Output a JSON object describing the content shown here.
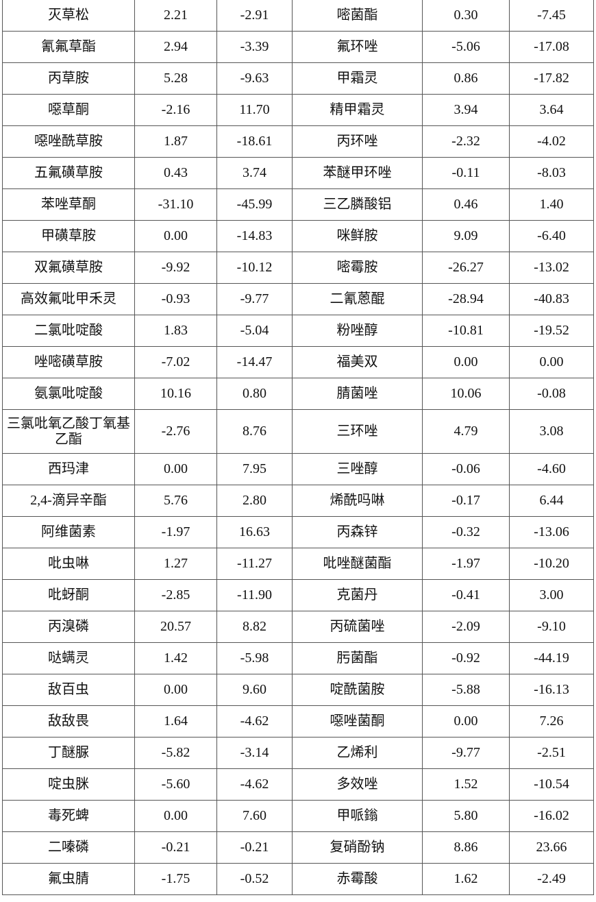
{
  "rows": [
    [
      "灭草松",
      "2.21",
      "-2.91",
      "嘧菌酯",
      "0.30",
      "-7.45"
    ],
    [
      "氰氟草酯",
      "2.94",
      "-3.39",
      "氟环唑",
      "-5.06",
      "-17.08"
    ],
    [
      "丙草胺",
      "5.28",
      "-9.63",
      "甲霜灵",
      "0.86",
      "-17.82"
    ],
    [
      "噁草酮",
      "-2.16",
      "11.70",
      "精甲霜灵",
      "3.94",
      "3.64"
    ],
    [
      "噁唑酰草胺",
      "1.87",
      "-18.61",
      "丙环唑",
      "-2.32",
      "-4.02"
    ],
    [
      "五氟磺草胺",
      "0.43",
      "3.74",
      "苯醚甲环唑",
      "-0.11",
      "-8.03"
    ],
    [
      "苯唑草酮",
      "-31.10",
      "-45.99",
      "三乙膦酸铝",
      "0.46",
      "1.40"
    ],
    [
      "甲磺草胺",
      "0.00",
      "-14.83",
      "咪鲜胺",
      "9.09",
      "-6.40"
    ],
    [
      "双氟磺草胺",
      "-9.92",
      "-10.12",
      "嘧霉胺",
      "-26.27",
      "-13.02"
    ],
    [
      "高效氟吡甲禾灵",
      "-0.93",
      "-9.77",
      "二氰蒽醌",
      "-28.94",
      "-40.83"
    ],
    [
      "二氯吡啶酸",
      "1.83",
      "-5.04",
      "粉唑醇",
      "-10.81",
      "-19.52"
    ],
    [
      "唑嘧磺草胺",
      "-7.02",
      "-14.47",
      "福美双",
      "0.00",
      "0.00"
    ],
    [
      "氨氯吡啶酸",
      "10.16",
      "0.80",
      "腈菌唑",
      "10.06",
      "-0.08"
    ],
    [
      "三氯吡氧乙酸丁氧基乙酯",
      "-2.76",
      "8.76",
      "三环唑",
      "4.79",
      "3.08"
    ],
    [
      "西玛津",
      "0.00",
      "7.95",
      "三唑醇",
      "-0.06",
      "-4.60"
    ],
    [
      "2,4-滴异辛酯",
      "5.76",
      "2.80",
      "烯酰吗啉",
      "-0.17",
      "6.44"
    ],
    [
      "阿维菌素",
      "-1.97",
      "16.63",
      "丙森锌",
      "-0.32",
      "-13.06"
    ],
    [
      "吡虫啉",
      "1.27",
      "-11.27",
      "吡唑醚菌酯",
      "-1.97",
      "-10.20"
    ],
    [
      "吡蚜酮",
      "-2.85",
      "-11.90",
      "克菌丹",
      "-0.41",
      "3.00"
    ],
    [
      "丙溴磷",
      "20.57",
      "8.82",
      "丙硫菌唑",
      "-2.09",
      "-9.10"
    ],
    [
      "哒螨灵",
      "1.42",
      "-5.98",
      "肟菌酯",
      "-0.92",
      "-44.19"
    ],
    [
      "敌百虫",
      "0.00",
      "9.60",
      "啶酰菌胺",
      "-5.88",
      "-16.13"
    ],
    [
      "敌敌畏",
      "1.64",
      "-4.62",
      "噁唑菌酮",
      "0.00",
      "7.26"
    ],
    [
      "丁醚脲",
      "-5.82",
      "-3.14",
      "乙烯利",
      "-9.77",
      "-2.51"
    ],
    [
      "啶虫脒",
      "-5.60",
      "-4.62",
      "多效唑",
      "1.52",
      "-10.54"
    ],
    [
      "毒死蜱",
      "0.00",
      "7.60",
      "甲哌鎓",
      "5.80",
      "-16.02"
    ],
    [
      "二嗪磷",
      "-0.21",
      "-0.21",
      "复硝酚钠",
      "8.86",
      "23.66"
    ],
    [
      "氟虫腈",
      "-1.75",
      "-0.52",
      "赤霉酸",
      "1.62",
      "-2.49"
    ]
  ]
}
